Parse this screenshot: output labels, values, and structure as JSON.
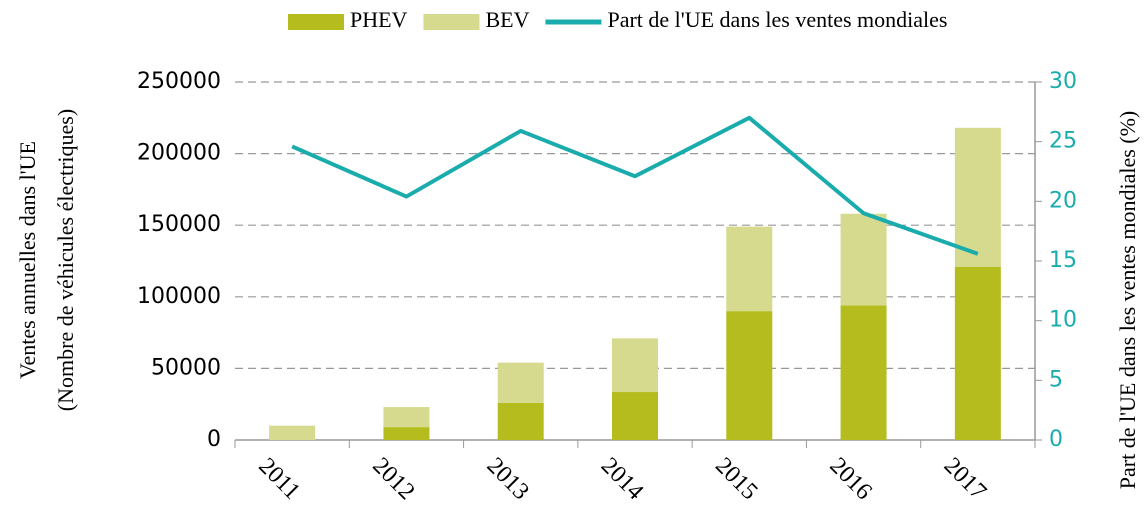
{
  "chart_data": {
    "type": "bar",
    "categories": [
      "2011",
      "2012",
      "2013",
      "2014",
      "2015",
      "2016",
      "2017"
    ],
    "y_label": [
      "Ventes annuelles dans l'UE",
      "(Nombre de véhicules électriques)"
    ],
    "y2_label": "Part de l'UE dans les ventes mondiales  (%)",
    "stacked": true,
    "series": [
      {
        "name": "PHEV",
        "color": "#b5bd1e",
        "values": [
          0,
          9000,
          26000,
          33500,
          90000,
          94000,
          121000
        ]
      },
      {
        "name": "BEV",
        "color": "#d6da8f",
        "values": [
          10000,
          14000,
          28000,
          37500,
          59000,
          64000,
          97000
        ]
      },
      {
        "name": "Part de l'UE dans les ventes mondiales",
        "type": "line",
        "axis": "y2",
        "color": "#1aacac",
        "values": [
          24.6,
          20.4,
          25.9,
          22.1,
          27.0,
          19.0,
          15.6
        ]
      }
    ],
    "ylim": [
      0,
      250000
    ],
    "yticks": [
      0,
      50000,
      100000,
      150000,
      200000,
      250000
    ],
    "y2lim": [
      0,
      30
    ],
    "y2ticks": [
      0,
      5,
      10,
      15,
      20,
      25,
      30
    ],
    "grid": true,
    "legend": "top"
  }
}
